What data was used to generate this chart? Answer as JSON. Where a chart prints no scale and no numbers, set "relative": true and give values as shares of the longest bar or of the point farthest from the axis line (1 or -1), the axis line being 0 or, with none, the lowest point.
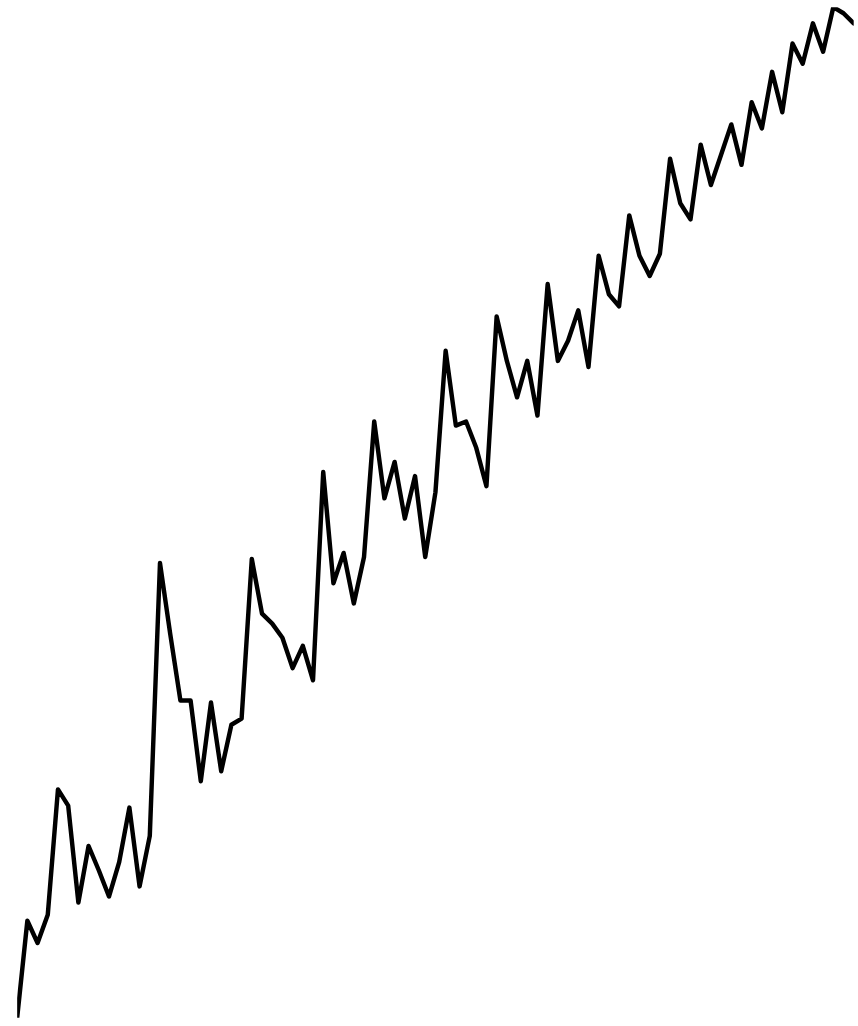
{
  "chart_data": {
    "type": "line",
    "relative": true,
    "categories": [
      null,
      null,
      null,
      null,
      null,
      null,
      null,
      null,
      null,
      null,
      null,
      null,
      null,
      null,
      null,
      null,
      null,
      null,
      null,
      null,
      null,
      null,
      null,
      null,
      null,
      null,
      null,
      null,
      null,
      null,
      null,
      null,
      null,
      null,
      null,
      null,
      null,
      null,
      null,
      null,
      null,
      null,
      null,
      null,
      null,
      null,
      null,
      null,
      null,
      null,
      null,
      null,
      null,
      null,
      null,
      null,
      null,
      null,
      null,
      null,
      null,
      null,
      null,
      null,
      null,
      null,
      null,
      null,
      null,
      null,
      null,
      null,
      null,
      null,
      null,
      null,
      null,
      null,
      null,
      null,
      null,
      null,
      null
    ],
    "series": [
      {
        "color": "#000000",
        "values": [
          0,
          0.096,
          0.074,
          0.102,
          0.226,
          0.21,
          0.114,
          0.17,
          0.146,
          0.12,
          0.154,
          0.208,
          0.13,
          0.18,
          0.45,
          0.38,
          0.314,
          0.314,
          0.234,
          0.312,
          0.244,
          0.29,
          0.296,
          0.454,
          0.4,
          0.39,
          0.376,
          0.346,
          0.368,
          0.334,
          0.54,
          0.43,
          0.46,
          0.41,
          0.456,
          0.59,
          0.514,
          0.55,
          0.494,
          0.536,
          0.456,
          0.52,
          0.66,
          0.586,
          0.59,
          0.564,
          0.526,
          0.694,
          0.65,
          0.614,
          0.65,
          0.596,
          0.726,
          0.65,
          0.67,
          0.7,
          0.644,
          0.754,
          0.716,
          0.704,
          0.794,
          0.754,
          0.734,
          0.756,
          0.85,
          0.806,
          0.79,
          0.864,
          0.824,
          0.854,
          0.884,
          0.844,
          0.906,
          0.88,
          0.936,
          0.896,
          0.964,
          0.944,
          0.984,
          0.956,
          1,
          0.994,
          0.984
        ]
      }
    ]
  }
}
